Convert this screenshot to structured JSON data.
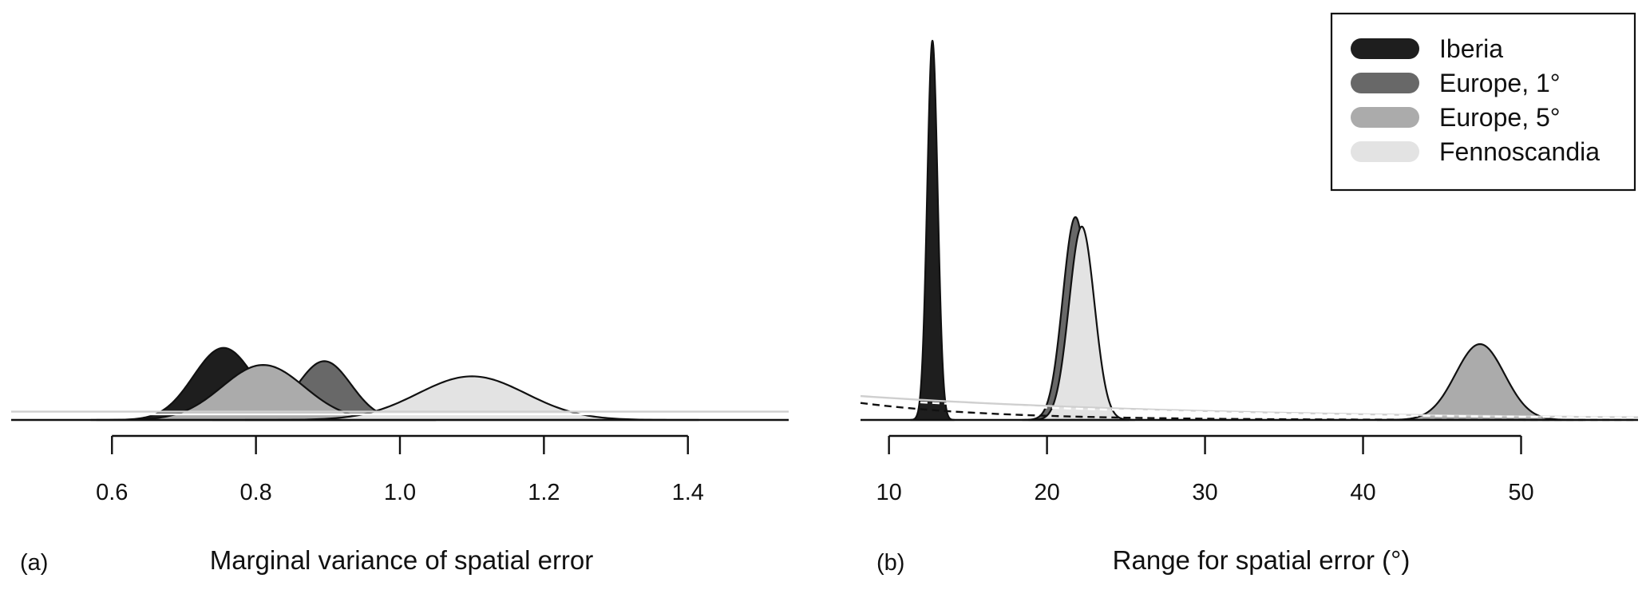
{
  "legend": {
    "items": [
      {
        "label": "Iberia",
        "color": "#1e1e1e"
      },
      {
        "label": "Europe, 1°",
        "color": "#686868"
      },
      {
        "label": "Europe, 5°",
        "color": "#ababab"
      },
      {
        "label": "Fennoscandia",
        "color": "#e3e3e3"
      }
    ],
    "placement": "top-right"
  },
  "chart_data": [
    {
      "type": "area",
      "panel_label": "(a)",
      "xlabel": "Marginal variance of spatial error",
      "ylabel": "",
      "xlim": [
        0.46,
        1.54
      ],
      "xticks": [
        0.6,
        0.8,
        1.0,
        1.2,
        1.4
      ],
      "xtick_labels": [
        "0.6",
        "0.8",
        "1.0",
        "1.2",
        "1.4"
      ],
      "grid": false,
      "series": [
        {
          "name": "Iberia",
          "color": "#1e1e1e",
          "kind": "density",
          "mean": 0.755,
          "sd": 0.042,
          "peak": 0.19
        },
        {
          "name": "Europe, 1°",
          "color": "#686868",
          "kind": "density",
          "mean": 0.895,
          "sd": 0.037,
          "peak": 0.155
        },
        {
          "name": "Europe, 5°",
          "color": "#ababab",
          "kind": "density",
          "mean": 0.81,
          "sd": 0.057,
          "peak": 0.145
        },
        {
          "name": "Fennoscandia",
          "color": "#e3e3e3",
          "kind": "density",
          "mean": 1.1,
          "sd": 0.075,
          "peak": 0.115
        }
      ],
      "prior_lines": [
        {
          "color": "#cfcfcf",
          "level": 0.022
        },
        {
          "color": "#ffffff",
          "level": 0.015
        }
      ]
    },
    {
      "type": "area",
      "panel_label": "(b)",
      "xlabel": "Range for spatial error (°)",
      "ylabel": "",
      "xlim": [
        8.2,
        57.4
      ],
      "xticks": [
        10,
        20,
        30,
        40,
        50
      ],
      "xtick_labels": [
        "10",
        "20",
        "30",
        "40",
        "50"
      ],
      "grid": false,
      "series": [
        {
          "name": "Iberia",
          "color": "#1e1e1e",
          "kind": "density",
          "mean": 12.75,
          "sd": 0.33,
          "peak": 1.0
        },
        {
          "name": "Europe, 1°",
          "color": "#686868",
          "kind": "density",
          "mean": 21.8,
          "sd": 0.8,
          "peak": 0.535
        },
        {
          "name": "Europe, 5°",
          "color": "#ababab",
          "kind": "density",
          "mean": 47.4,
          "sd": 1.55,
          "peak": 0.2
        },
        {
          "name": "Fennoscandia",
          "color": "#e3e3e3",
          "kind": "density",
          "mean": 22.2,
          "sd": 0.8,
          "peak": 0.51
        }
      ],
      "prior_lines": [
        {
          "color": "#111111",
          "dash": true,
          "start_level": 0.045,
          "decay": 0.12,
          "floor": 0.0
        },
        {
          "color": "#cfcfcf",
          "dash": false,
          "start_level": 0.063,
          "decay": 0.045,
          "floor": 0.0
        },
        {
          "color": "#ffffff",
          "dash": true,
          "start_level": 0.055,
          "decay": 0.045,
          "floor": 0.0
        }
      ]
    }
  ]
}
